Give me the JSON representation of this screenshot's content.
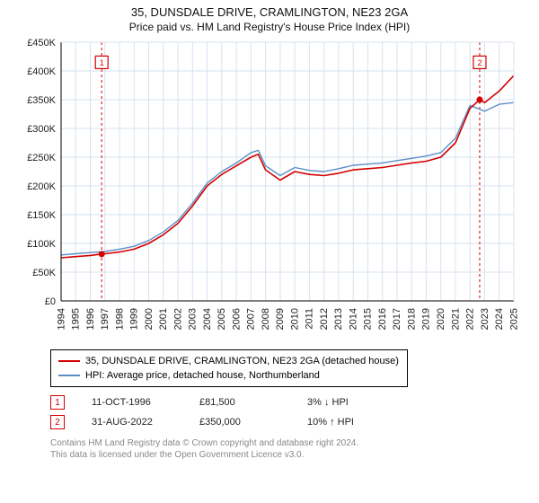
{
  "title": "35, DUNSDALE DRIVE, CRAMLINGTON, NE23 2GA",
  "subtitle": "Price paid vs. HM Land Registry's House Price Index (HPI)",
  "chart": {
    "type": "line",
    "background_color": "#ffffff",
    "plot_background": "#ffffff",
    "grid_color": "#d7e3ee",
    "axis_color": "#000000",
    "x": {
      "min": 1994,
      "max": 2025,
      "ticks": [
        1994,
        1995,
        1996,
        1997,
        1998,
        1999,
        2000,
        2001,
        2002,
        2003,
        2004,
        2005,
        2006,
        2007,
        2008,
        2009,
        2010,
        2011,
        2012,
        2013,
        2014,
        2015,
        2016,
        2017,
        2018,
        2019,
        2020,
        2021,
        2022,
        2023,
        2024,
        2025
      ],
      "tick_labels": [
        "1994",
        "1995",
        "1996",
        "1997",
        "1998",
        "1999",
        "2000",
        "2001",
        "2002",
        "2003",
        "2004",
        "2005",
        "2006",
        "2007",
        "2008",
        "2009",
        "2010",
        "2011",
        "2012",
        "2013",
        "2014",
        "2015",
        "2016",
        "2017",
        "2018",
        "2019",
        "2020",
        "2021",
        "2022",
        "2023",
        "2024",
        "2025"
      ],
      "tick_fontsize": 11,
      "tick_rotation": -90
    },
    "y": {
      "min": 0,
      "max": 450000,
      "ticks": [
        0,
        50000,
        100000,
        150000,
        200000,
        250000,
        300000,
        350000,
        400000,
        450000
      ],
      "tick_labels": [
        "£0",
        "£50K",
        "£100K",
        "£150K",
        "£200K",
        "£250K",
        "£300K",
        "£350K",
        "£400K",
        "£450K"
      ],
      "tick_fontsize": 11
    },
    "series": [
      {
        "name": "35, DUNSDALE DRIVE, CRAMLINGTON, NE23 2GA (detached house)",
        "color": "#d40000",
        "line_width": 1.6,
        "x": [
          1994,
          1995,
          1996,
          1996.78,
          1997,
          1998,
          1999,
          2000,
          2001,
          2002,
          2003,
          2004,
          2005,
          2006,
          2007,
          2007.5,
          2008,
          2009,
          2010,
          2011,
          2012,
          2013,
          2014,
          2015,
          2016,
          2017,
          2018,
          2019,
          2020,
          2021,
          2022,
          2022.66,
          2023,
          2024,
          2025
        ],
        "y": [
          75000,
          77000,
          79000,
          81500,
          82000,
          85000,
          90000,
          100000,
          115000,
          135000,
          165000,
          200000,
          220000,
          235000,
          250000,
          255000,
          228000,
          210000,
          225000,
          220000,
          218000,
          222000,
          228000,
          230000,
          232000,
          236000,
          240000,
          243000,
          250000,
          275000,
          335000,
          350000,
          345000,
          365000,
          392000
        ]
      },
      {
        "name": "HPI: Average price, detached house, Northumberland",
        "color": "#5b8fc7",
        "line_width": 1.4,
        "x": [
          1994,
          1995,
          1996,
          1997,
          1998,
          1999,
          2000,
          2001,
          2002,
          2003,
          2004,
          2005,
          2006,
          2007,
          2007.5,
          2008,
          2009,
          2010,
          2011,
          2012,
          2013,
          2014,
          2015,
          2016,
          2017,
          2018,
          2019,
          2020,
          2021,
          2022,
          2023,
          2024,
          2025
        ],
        "y": [
          80000,
          82000,
          84000,
          86000,
          90000,
          95000,
          105000,
          120000,
          140000,
          170000,
          205000,
          225000,
          240000,
          258000,
          262000,
          235000,
          218000,
          232000,
          227000,
          225000,
          230000,
          236000,
          238000,
          240000,
          244000,
          248000,
          252000,
          258000,
          283000,
          340000,
          330000,
          342000,
          345000
        ]
      }
    ],
    "sale_lines": {
      "color": "#d40000",
      "dash": "3,3",
      "width": 1
    },
    "sale_markers": [
      {
        "label": "1",
        "x": 1996.78,
        "y": 81500,
        "marker_y_top": 415000,
        "color": "#d40000",
        "box_text_color": "#d40000"
      },
      {
        "label": "2",
        "x": 2022.66,
        "y": 350000,
        "marker_y_top": 415000,
        "color": "#d40000",
        "box_text_color": "#d40000"
      }
    ]
  },
  "legend": {
    "border_color": "#000000",
    "items": [
      {
        "swatch": "#d40000",
        "label": "35, DUNSDALE DRIVE, CRAMLINGTON, NE23 2GA (detached house)"
      },
      {
        "swatch": "#5b8fc7",
        "label": "HPI: Average price, detached house, Northumberland"
      }
    ]
  },
  "sales_table": [
    {
      "marker": "1",
      "marker_color": "#d40000",
      "date": "11-OCT-1996",
      "price": "£81,500",
      "delta": "3% ↓ HPI"
    },
    {
      "marker": "2",
      "marker_color": "#d40000",
      "date": "31-AUG-2022",
      "price": "£350,000",
      "delta": "10% ↑ HPI"
    }
  ],
  "footer_line1": "Contains HM Land Registry data © Crown copyright and database right 2024.",
  "footer_line2": "This data is licensed under the Open Government Licence v3.0."
}
